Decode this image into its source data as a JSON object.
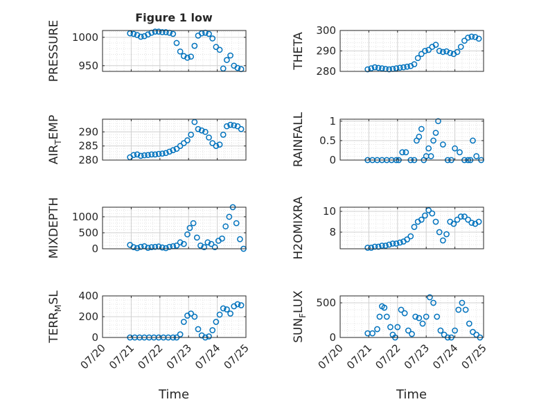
{
  "figure": {
    "title": "Figure 1 low",
    "xlabel": "Time",
    "xticks": [
      "07/20",
      "07/21",
      "07/22",
      "07/23",
      "07/24",
      "07/25"
    ],
    "marker_color": "#0072BD",
    "axis_color": "#262626",
    "grid_color": "#dcdcdc"
  },
  "chart_data": [
    {
      "type": "scatter",
      "ylabel": "PRESSURE",
      "ylim": [
        940,
        1012
      ],
      "yticks": [
        950,
        1000
      ],
      "x_range": [
        "07/20",
        "07/25"
      ],
      "series": [
        {
          "x": [
            "07/20 23:00",
            "07/21 02:00",
            "07/21 05:00",
            "07/21 08:00",
            "07/21 11:00",
            "07/21 14:00",
            "07/21 17:00",
            "07/21 20:00",
            "07/21 23:00",
            "07/22 02:00",
            "07/22 05:00",
            "07/22 08:00",
            "07/22 11:00",
            "07/22 14:00",
            "07/22 17:00",
            "07/22 20:00",
            "07/22 23:00",
            "07/23 02:00",
            "07/23 05:00",
            "07/23 08:00",
            "07/23 11:00",
            "07/23 14:00",
            "07/23 17:00",
            "07/23 20:00",
            "07/23 23:00",
            "07/24 02:00",
            "07/24 05:00",
            "07/24 08:00",
            "07/24 11:00",
            "07/24 14:00",
            "07/24 17:00",
            "07/24 20:00"
          ],
          "y": [
            1007,
            1006,
            1004,
            1001,
            1002,
            1005,
            1008,
            1010,
            1010,
            1009,
            1009,
            1008,
            1006,
            990,
            975,
            967,
            964,
            966,
            985,
            1003,
            1007,
            1008,
            1006,
            998,
            983,
            978,
            945,
            960,
            968,
            950,
            946,
            944
          ]
        }
      ]
    },
    {
      "type": "scatter",
      "ylabel": "THETA",
      "ylim": [
        280,
        300
      ],
      "yticks": [
        280,
        290,
        300
      ],
      "x_range": [
        "07/20",
        "07/25"
      ],
      "series": [
        {
          "x": [
            "07/20 23:00",
            "07/21 02:00",
            "07/21 05:00",
            "07/21 08:00",
            "07/21 11:00",
            "07/21 14:00",
            "07/21 17:00",
            "07/21 20:00",
            "07/21 23:00",
            "07/22 02:00",
            "07/22 05:00",
            "07/22 08:00",
            "07/22 11:00",
            "07/22 14:00",
            "07/22 17:00",
            "07/22 20:00",
            "07/22 23:00",
            "07/23 02:00",
            "07/23 05:00",
            "07/23 08:00",
            "07/23 11:00",
            "07/23 14:00",
            "07/23 17:00",
            "07/23 20:00",
            "07/23 23:00",
            "07/24 02:00",
            "07/24 05:00",
            "07/24 08:00",
            "07/24 11:00",
            "07/24 14:00",
            "07/24 17:00",
            "07/24 20:00"
          ],
          "y": [
            281,
            281.5,
            282,
            281.7,
            281.5,
            281.2,
            281,
            281.2,
            281.5,
            281.8,
            282,
            282.3,
            282.6,
            283.5,
            286.5,
            288.5,
            290,
            290.5,
            292,
            293,
            290,
            289.5,
            289.8,
            289,
            288.5,
            289.5,
            292,
            295,
            296.5,
            297,
            296.8,
            296
          ]
        }
      ]
    },
    {
      "type": "scatter",
      "ylabel": "AIR_TEMP",
      "ylim": [
        280,
        294.5
      ],
      "yticks": [
        280,
        285,
        290
      ],
      "x_range": [
        "07/20",
        "07/25"
      ],
      "series": [
        {
          "x": [
            "07/20 23:00",
            "07/21 02:00",
            "07/21 05:00",
            "07/21 08:00",
            "07/21 11:00",
            "07/21 14:00",
            "07/21 17:00",
            "07/21 20:00",
            "07/21 23:00",
            "07/22 02:00",
            "07/22 05:00",
            "07/22 08:00",
            "07/22 11:00",
            "07/22 14:00",
            "07/22 17:00",
            "07/22 20:00",
            "07/22 23:00",
            "07/23 02:00",
            "07/23 05:00",
            "07/23 08:00",
            "07/23 11:00",
            "07/23 14:00",
            "07/23 17:00",
            "07/23 20:00",
            "07/23 23:00",
            "07/24 02:00",
            "07/24 05:00",
            "07/24 08:00",
            "07/24 11:00",
            "07/24 14:00",
            "07/24 17:00",
            "07/24 20:00"
          ],
          "y": [
            281,
            281.8,
            282,
            281.5,
            281.7,
            281.8,
            282,
            282,
            282.2,
            282.3,
            282.5,
            283,
            283.5,
            284,
            285,
            286,
            287,
            289,
            293.5,
            291,
            290.5,
            290,
            288,
            286,
            285,
            285.5,
            289,
            292,
            292.5,
            292.3,
            292,
            291
          ]
        }
      ]
    },
    {
      "type": "scatter",
      "ylabel": "RAINFALL",
      "ylim": [
        0,
        1.05
      ],
      "yticks": [
        0,
        0.5,
        1
      ],
      "x_range": [
        "07/20",
        "07/25"
      ],
      "series": [
        {
          "x": [
            "07/20 23:00",
            "07/21 03:00",
            "07/21 07:00",
            "07/21 11:00",
            "07/21 15:00",
            "07/21 19:00",
            "07/21 23:00",
            "07/22 01:00",
            "07/22 04:00",
            "07/22 07:00",
            "07/22 11:00",
            "07/22 14:00",
            "07/22 16:00",
            "07/22 18:00",
            "07/22 20:00",
            "07/22 22:00",
            "07/23 00:00",
            "07/23 02:00",
            "07/23 04:00",
            "07/23 06:00",
            "07/23 08:00",
            "07/23 10:00",
            "07/23 14:00",
            "07/23 18:00",
            "07/23 21:00",
            "07/24 00:00",
            "07/24 04:00",
            "07/24 08:00",
            "07/24 11:00",
            "07/24 13:00",
            "07/24 15:00",
            "07/24 18:00",
            "07/24 22:00"
          ],
          "y": [
            0,
            0,
            0,
            0,
            0,
            0,
            0,
            0,
            0.2,
            0.2,
            0,
            0,
            0.5,
            0.6,
            0.8,
            0,
            0.1,
            0.3,
            0.1,
            0.5,
            0.7,
            1,
            0.4,
            0,
            0,
            0.3,
            0.2,
            0,
            0,
            0,
            0.5,
            0.1,
            0
          ]
        }
      ]
    },
    {
      "type": "scatter",
      "ylabel": "MIXDEPTH",
      "ylim": [
        0,
        1300
      ],
      "yticks": [
        0,
        500,
        1000
      ],
      "x_range": [
        "07/20",
        "07/25"
      ],
      "series": [
        {
          "x": [
            "07/20 23:00",
            "07/21 02:00",
            "07/21 05:00",
            "07/21 08:00",
            "07/21 11:00",
            "07/21 14:00",
            "07/21 17:00",
            "07/21 20:00",
            "07/21 23:00",
            "07/22 02:00",
            "07/22 05:00",
            "07/22 08:00",
            "07/22 11:00",
            "07/22 14:00",
            "07/22 17:00",
            "07/22 20:00",
            "07/22 23:00",
            "07/23 01:00",
            "07/23 04:00",
            "07/23 07:00",
            "07/23 10:00",
            "07/23 13:00",
            "07/23 16:00",
            "07/23 19:00",
            "07/23 22:00",
            "07/24 01:00",
            "07/24 04:00",
            "07/24 07:00",
            "07/24 10:00",
            "07/24 13:00",
            "07/24 16:00",
            "07/24 19:00",
            "07/24 22:00"
          ],
          "y": [
            120,
            50,
            20,
            60,
            80,
            30,
            50,
            60,
            70,
            40,
            20,
            60,
            80,
            100,
            200,
            150,
            450,
            650,
            800,
            350,
            100,
            50,
            200,
            150,
            50,
            250,
            320,
            700,
            1000,
            1300,
            800,
            300,
            0
          ]
        }
      ]
    },
    {
      "type": "scatter",
      "ylabel": "H2OMIXRA",
      "ylim": [
        6.4,
        10.4
      ],
      "yticks": [
        8,
        10
      ],
      "x_range": [
        "07/20",
        "07/25"
      ],
      "series": [
        {
          "x": [
            "07/20 23:00",
            "07/21 02:00",
            "07/21 05:00",
            "07/21 08:00",
            "07/21 11:00",
            "07/21 14:00",
            "07/21 17:00",
            "07/21 20:00",
            "07/21 23:00",
            "07/22 02:00",
            "07/22 05:00",
            "07/22 08:00",
            "07/22 11:00",
            "07/22 14:00",
            "07/22 17:00",
            "07/22 20:00",
            "07/22 23:00",
            "07/23 02:00",
            "07/23 05:00",
            "07/23 08:00",
            "07/23 11:00",
            "07/23 14:00",
            "07/23 17:00",
            "07/23 20:00",
            "07/23 23:00",
            "07/24 02:00",
            "07/24 05:00",
            "07/24 08:00",
            "07/24 11:00",
            "07/24 14:00",
            "07/24 17:00",
            "07/24 20:00"
          ],
          "y": [
            6.5,
            6.5,
            6.6,
            6.6,
            6.7,
            6.7,
            6.8,
            6.9,
            6.9,
            7,
            7.1,
            7.3,
            7.6,
            8.5,
            9,
            9.2,
            9.6,
            10.1,
            9.8,
            9,
            8,
            7.2,
            7.8,
            9,
            8.8,
            9.2,
            9.5,
            9.5,
            9.2,
            8.9,
            8.8,
            9
          ]
        }
      ]
    },
    {
      "type": "scatter",
      "ylabel": "TERR_MSL",
      "ylim": [
        0,
        400
      ],
      "yticks": [
        0,
        200,
        400
      ],
      "x_range": [
        "07/20",
        "07/25"
      ],
      "series": [
        {
          "x": [
            "07/20 23:00",
            "07/21 03:00",
            "07/21 07:00",
            "07/21 11:00",
            "07/21 15:00",
            "07/21 19:00",
            "07/21 23:00",
            "07/22 03:00",
            "07/22 07:00",
            "07/22 11:00",
            "07/22 14:00",
            "07/22 17:00",
            "07/22 20:00",
            "07/22 23:00",
            "07/23 02:00",
            "07/23 05:00",
            "07/23 08:00",
            "07/23 11:00",
            "07/23 14:00",
            "07/23 17:00",
            "07/23 20:00",
            "07/23 23:00",
            "07/24 02:00",
            "07/24 05:00",
            "07/24 08:00",
            "07/24 11:00",
            "07/24 14:00",
            "07/24 17:00",
            "07/24 20:00"
          ],
          "y": [
            0,
            0,
            0,
            0,
            0,
            0,
            0,
            0,
            0,
            0,
            0,
            30,
            150,
            210,
            230,
            200,
            80,
            20,
            0,
            10,
            70,
            150,
            220,
            280,
            270,
            230,
            300,
            320,
            310
          ]
        }
      ]
    },
    {
      "type": "scatter",
      "ylabel": "SUN_FLUX",
      "ylim": [
        0,
        600
      ],
      "yticks": [
        0,
        500
      ],
      "x_range": [
        "07/20",
        "07/25"
      ],
      "series": [
        {
          "x": [
            "07/20 23:00",
            "07/21 03:00",
            "07/21 07:00",
            "07/21 09:00",
            "07/21 11:00",
            "07/21 13:00",
            "07/21 15:00",
            "07/21 18:00",
            "07/21 20:00",
            "07/21 22:00",
            "07/22 00:00",
            "07/22 03:00",
            "07/22 06:00",
            "07/22 09:00",
            "07/22 12:00",
            "07/22 15:00",
            "07/22 18:00",
            "07/22 21:00",
            "07/23 00:00",
            "07/23 03:00",
            "07/23 06:00",
            "07/23 09:00",
            "07/23 12:00",
            "07/23 15:00",
            "07/23 18:00",
            "07/23 21:00",
            "07/24 00:00",
            "07/24 03:00",
            "07/24 06:00",
            "07/24 09:00",
            "07/24 12:00",
            "07/24 15:00",
            "07/24 18:00",
            "07/24 21:00"
          ],
          "y": [
            60,
            60,
            120,
            300,
            450,
            430,
            300,
            150,
            40,
            0,
            150,
            400,
            350,
            100,
            50,
            300,
            280,
            200,
            300,
            580,
            500,
            300,
            100,
            40,
            0,
            0,
            100,
            400,
            500,
            400,
            200,
            80,
            40,
            0
          ]
        }
      ]
    }
  ]
}
